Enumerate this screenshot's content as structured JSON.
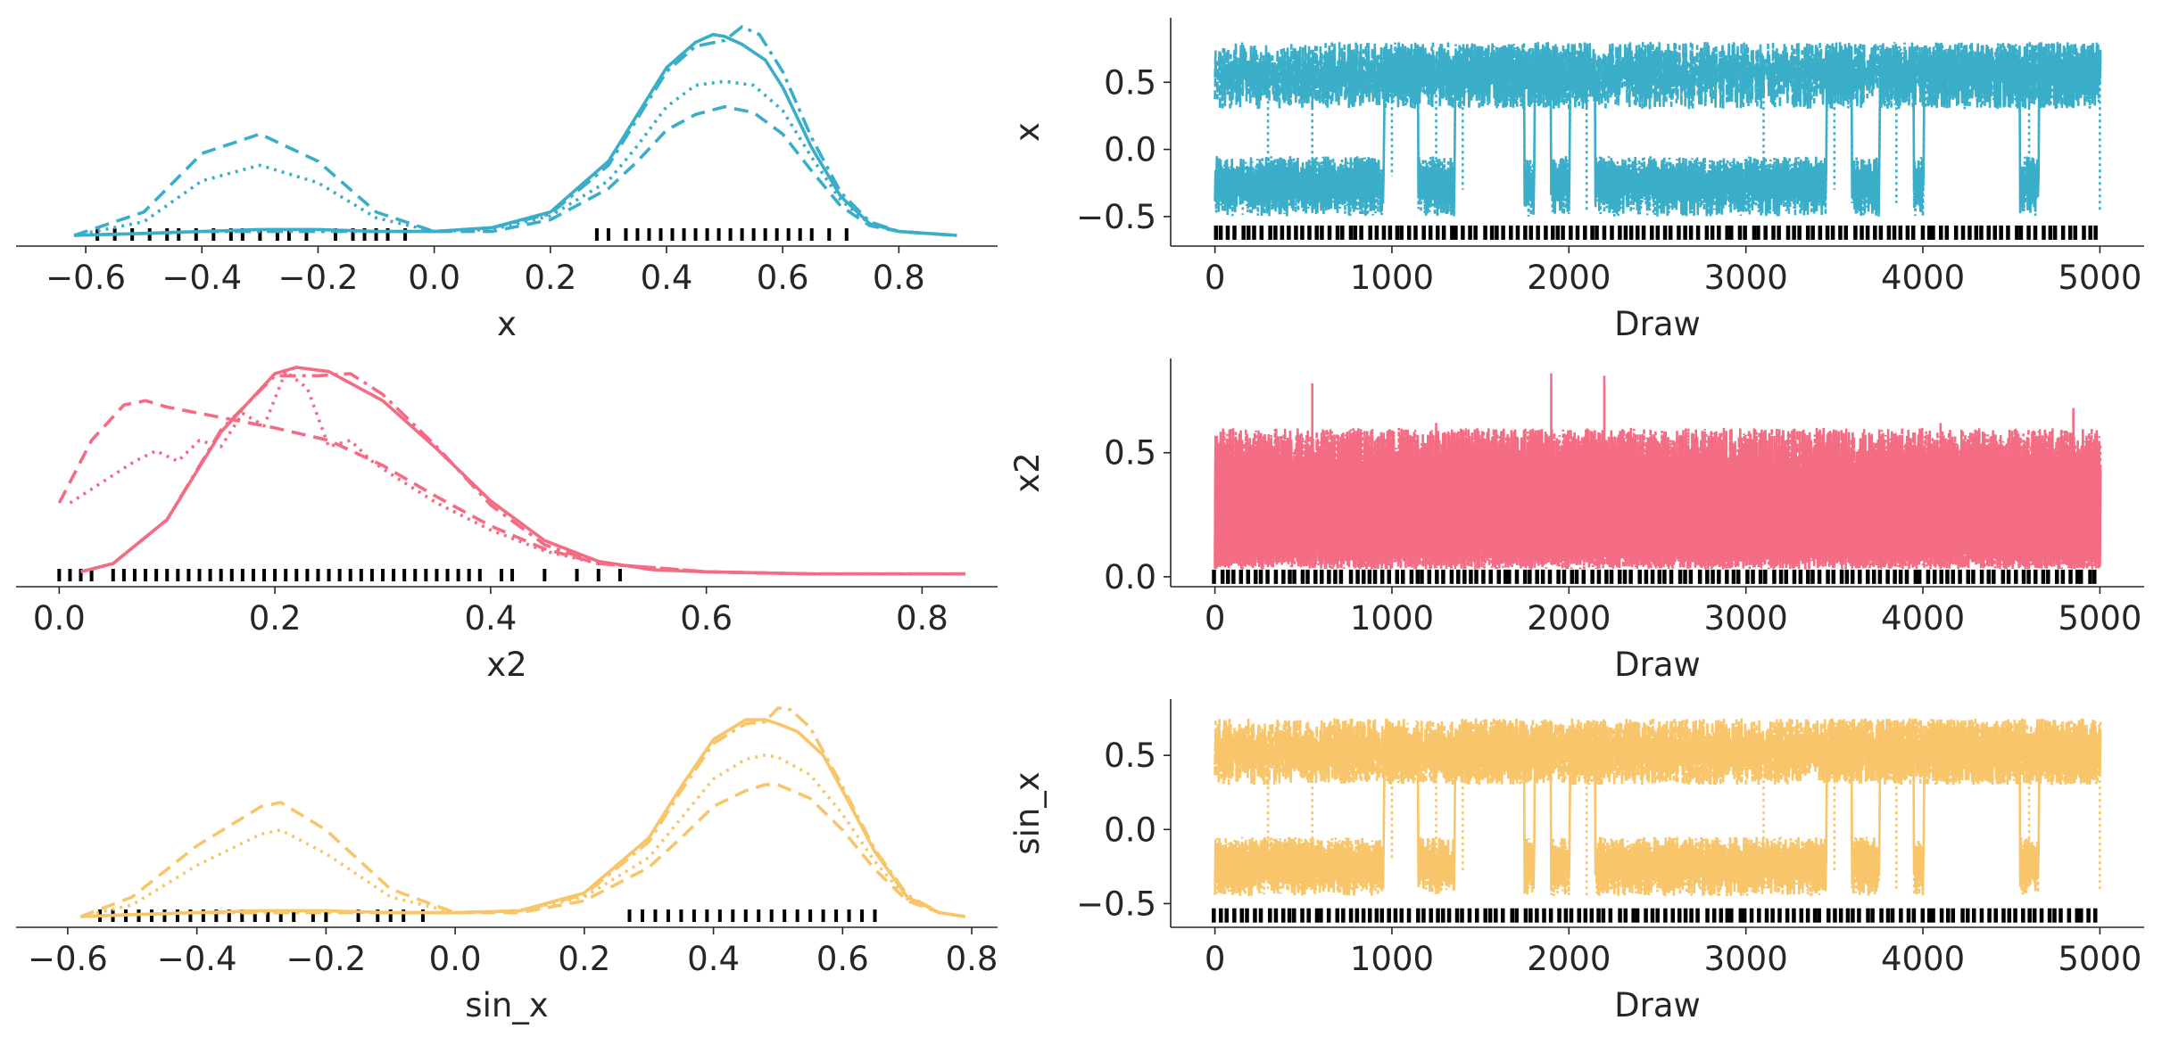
{
  "colors": {
    "x": "#3aaec9",
    "x2": "#f46c83",
    "sin_x": "#f8c56a",
    "rug": "#000000",
    "axis": "#262626"
  },
  "chart_data": [
    {
      "type": "line",
      "panel": "density",
      "variable": "x",
      "xlabel": "x",
      "ylabel": "",
      "xlim": [
        -0.72,
        0.97
      ],
      "xticks": [
        -0.6,
        -0.4,
        -0.2,
        0.0,
        0.2,
        0.4,
        0.6,
        0.8
      ],
      "xtick_labels": [
        "−0.6",
        "−0.4",
        "−0.2",
        "0.0",
        "0.2",
        "0.4",
        "0.6",
        "0.8"
      ],
      "yticks": [],
      "grid": false,
      "series": [
        {
          "linestyle": "solid",
          "x": [
            -0.62,
            -0.5,
            -0.4,
            -0.3,
            -0.2,
            -0.1,
            0.0,
            0.1,
            0.2,
            0.3,
            0.35,
            0.4,
            0.45,
            0.48,
            0.5,
            0.53,
            0.57,
            0.6,
            0.65,
            0.7,
            0.75,
            0.8,
            0.9
          ],
          "y": [
            0,
            0.01,
            0.02,
            0.03,
            0.03,
            0.02,
            0.02,
            0.04,
            0.12,
            0.38,
            0.62,
            0.86,
            0.99,
            1.03,
            1.02,
            0.98,
            0.9,
            0.76,
            0.45,
            0.2,
            0.06,
            0.02,
            0
          ]
        },
        {
          "linestyle": "dashdot",
          "x": [
            -0.62,
            -0.5,
            -0.4,
            -0.3,
            -0.2,
            -0.1,
            0.0,
            0.1,
            0.2,
            0.3,
            0.35,
            0.4,
            0.45,
            0.5,
            0.53,
            0.56,
            0.6,
            0.65,
            0.7,
            0.75,
            0.8,
            0.9
          ],
          "y": [
            0,
            0.01,
            0.02,
            0.02,
            0.02,
            0.02,
            0.02,
            0.04,
            0.11,
            0.36,
            0.6,
            0.84,
            0.97,
            1.0,
            1.07,
            1.03,
            0.84,
            0.5,
            0.22,
            0.07,
            0.02,
            0
          ]
        },
        {
          "linestyle": "dotted",
          "x": [
            -0.62,
            -0.5,
            -0.4,
            -0.3,
            -0.2,
            -0.1,
            0.0,
            0.1,
            0.2,
            0.3,
            0.35,
            0.4,
            0.45,
            0.5,
            0.55,
            0.6,
            0.65,
            0.7,
            0.75,
            0.8,
            0.9
          ],
          "y": [
            0,
            0.07,
            0.28,
            0.36,
            0.27,
            0.09,
            0.02,
            0.03,
            0.1,
            0.28,
            0.46,
            0.66,
            0.77,
            0.79,
            0.77,
            0.64,
            0.4,
            0.18,
            0.06,
            0.02,
            0
          ]
        },
        {
          "linestyle": "dashed",
          "x": [
            -0.62,
            -0.5,
            -0.4,
            -0.3,
            -0.2,
            -0.1,
            0.0,
            0.1,
            0.2,
            0.3,
            0.35,
            0.4,
            0.45,
            0.5,
            0.55,
            0.6,
            0.65,
            0.7,
            0.75,
            0.8,
            0.9
          ],
          "y": [
            0,
            0.12,
            0.42,
            0.52,
            0.38,
            0.12,
            0.02,
            0.02,
            0.08,
            0.24,
            0.38,
            0.54,
            0.62,
            0.66,
            0.63,
            0.52,
            0.33,
            0.15,
            0.05,
            0.02,
            0
          ]
        }
      ],
      "rug": [
        -0.58,
        -0.55,
        -0.52,
        -0.49,
        -0.46,
        -0.44,
        -0.41,
        -0.38,
        -0.35,
        -0.33,
        -0.3,
        -0.27,
        -0.25,
        -0.22,
        -0.17,
        -0.14,
        -0.12,
        -0.1,
        -0.08,
        -0.05,
        0.28,
        0.3,
        0.33,
        0.35,
        0.37,
        0.39,
        0.41,
        0.43,
        0.45,
        0.47,
        0.49,
        0.51,
        0.53,
        0.55,
        0.57,
        0.59,
        0.61,
        0.63,
        0.65,
        0.68,
        0.71
      ]
    },
    {
      "type": "line",
      "panel": "trace",
      "variable": "x",
      "xlabel": "Draw",
      "ylabel": "x",
      "xlim": [
        -250,
        5250
      ],
      "ylim": [
        -0.72,
        0.98
      ],
      "xticks": [
        0,
        1000,
        2000,
        3000,
        4000,
        5000
      ],
      "xtick_labels": [
        "0",
        "1000",
        "2000",
        "3000",
        "4000",
        "5000"
      ],
      "yticks": [
        -0.5,
        0.0,
        0.5
      ],
      "ytick_labels": [
        "−0.5",
        "0.0",
        "0.5"
      ],
      "grid": false,
      "band_upper": {
        "lo": [
          0.3,
          0.6
        ],
        "hi": [
          0.55,
          0.8
        ]
      },
      "band_lower": {
        "lo": [
          -0.5,
          -0.3
        ],
        "hi": [
          -0.2,
          -0.05
        ]
      },
      "lower_segments": [
        [
          0,
          950
        ],
        [
          1150,
          1350
        ],
        [
          1750,
          1800
        ],
        [
          1900,
          2000
        ],
        [
          2150,
          3450
        ],
        [
          3600,
          3750
        ],
        [
          3950,
          4000
        ],
        [
          4550,
          4650
        ]
      ],
      "spikes": [
        [
          300,
          -0.45
        ],
        [
          550,
          -0.35
        ],
        [
          1000,
          -0.2
        ],
        [
          1250,
          -0.4
        ],
        [
          1400,
          -0.3
        ],
        [
          2100,
          -0.45
        ],
        [
          3100,
          -0.35
        ],
        [
          3500,
          -0.3
        ],
        [
          3850,
          -0.4
        ],
        [
          4600,
          -0.3
        ],
        [
          5000,
          -0.45
        ]
      ],
      "rug_y": -0.62
    },
    {
      "type": "line",
      "panel": "density",
      "variable": "x2",
      "xlabel": "x2",
      "ylabel": "",
      "xlim": [
        -0.04,
        0.87
      ],
      "xticks": [
        0.0,
        0.2,
        0.4,
        0.6,
        0.8
      ],
      "xtick_labels": [
        "0.0",
        "0.2",
        "0.4",
        "0.6",
        "0.8"
      ],
      "yticks": [],
      "grid": false,
      "series": [
        {
          "linestyle": "solid",
          "x": [
            0.02,
            0.05,
            0.1,
            0.15,
            0.2,
            0.22,
            0.25,
            0.3,
            0.35,
            0.4,
            0.45,
            0.5,
            0.55,
            0.6,
            0.7,
            0.84
          ],
          "y": [
            0.02,
            0.06,
            0.27,
            0.69,
            0.97,
            1.0,
            0.98,
            0.84,
            0.61,
            0.36,
            0.17,
            0.07,
            0.03,
            0.02,
            0.01,
            0.01
          ]
        },
        {
          "linestyle": "dashdot",
          "x": [
            0.02,
            0.05,
            0.1,
            0.15,
            0.2,
            0.24,
            0.27,
            0.3,
            0.35,
            0.4,
            0.45,
            0.5,
            0.6,
            0.7,
            0.84
          ],
          "y": [
            0.02,
            0.06,
            0.27,
            0.7,
            0.96,
            0.96,
            0.97,
            0.87,
            0.62,
            0.34,
            0.15,
            0.06,
            0.02,
            0.01,
            0.01
          ]
        },
        {
          "linestyle": "dotted",
          "x": [
            0.01,
            0.04,
            0.07,
            0.09,
            0.11,
            0.13,
            0.15,
            0.17,
            0.19,
            0.21,
            0.23,
            0.25,
            0.27,
            0.29,
            0.31,
            0.35,
            0.4,
            0.45,
            0.5,
            0.6,
            0.7,
            0.84
          ],
          "y": [
            0.35,
            0.45,
            0.55,
            0.6,
            0.55,
            0.65,
            0.62,
            0.78,
            0.72,
            0.98,
            0.9,
            0.62,
            0.65,
            0.55,
            0.48,
            0.35,
            0.22,
            0.12,
            0.06,
            0.02,
            0.01,
            0.01
          ]
        },
        {
          "linestyle": "dashed",
          "x": [
            0.0,
            0.03,
            0.06,
            0.08,
            0.1,
            0.15,
            0.2,
            0.25,
            0.3,
            0.35,
            0.4,
            0.45,
            0.5,
            0.6,
            0.7,
            0.84
          ],
          "y": [
            0.35,
            0.65,
            0.82,
            0.84,
            0.81,
            0.76,
            0.71,
            0.65,
            0.53,
            0.38,
            0.24,
            0.13,
            0.06,
            0.02,
            0.01,
            0.01
          ]
        }
      ],
      "rug": [
        0.0,
        0.01,
        0.02,
        0.03,
        0.05,
        0.06,
        0.07,
        0.08,
        0.09,
        0.1,
        0.11,
        0.12,
        0.13,
        0.14,
        0.15,
        0.16,
        0.17,
        0.18,
        0.19,
        0.2,
        0.21,
        0.22,
        0.23,
        0.24,
        0.25,
        0.26,
        0.27,
        0.28,
        0.29,
        0.3,
        0.31,
        0.32,
        0.33,
        0.34,
        0.35,
        0.36,
        0.37,
        0.38,
        0.39,
        0.41,
        0.42,
        0.45,
        0.48,
        0.5,
        0.52
      ]
    },
    {
      "type": "line",
      "panel": "trace",
      "variable": "x2",
      "xlabel": "Draw",
      "ylabel": "x2",
      "xlim": [
        -250,
        5250
      ],
      "ylim": [
        -0.04,
        0.88
      ],
      "xticks": [
        0,
        1000,
        2000,
        3000,
        4000,
        5000
      ],
      "xtick_labels": [
        "0",
        "1000",
        "2000",
        "3000",
        "4000",
        "5000"
      ],
      "yticks": [
        0.0,
        0.5
      ],
      "ytick_labels": [
        "0.0",
        "0.5"
      ],
      "grid": false,
      "band_upper": {
        "lo": [
          0.03,
          0.12
        ],
        "hi": [
          0.4,
          0.6
        ]
      },
      "peaks": [
        [
          550,
          0.78
        ],
        [
          1250,
          0.62
        ],
        [
          1900,
          0.82
        ],
        [
          2200,
          0.81
        ],
        [
          2350,
          0.6
        ],
        [
          3400,
          0.6
        ],
        [
          4100,
          0.62
        ],
        [
          4850,
          0.68
        ]
      ],
      "rug_y": 0.0
    },
    {
      "type": "line",
      "panel": "density",
      "variable": "sin_x",
      "xlabel": "sin_x",
      "ylabel": "",
      "xlim": [
        -0.68,
        0.84
      ],
      "xticks": [
        -0.6,
        -0.4,
        -0.2,
        0.0,
        0.2,
        0.4,
        0.6,
        0.8
      ],
      "xtick_labels": [
        "−0.6",
        "−0.4",
        "−0.2",
        "0.0",
        "0.2",
        "0.4",
        "0.6",
        "0.8"
      ],
      "yticks": [],
      "grid": false,
      "series": [
        {
          "linestyle": "solid",
          "x": [
            -0.58,
            -0.5,
            -0.4,
            -0.3,
            -0.2,
            -0.1,
            0.0,
            0.1,
            0.2,
            0.3,
            0.35,
            0.4,
            0.45,
            0.48,
            0.5,
            0.53,
            0.57,
            0.6,
            0.65,
            0.7,
            0.75,
            0.79
          ],
          "y": [
            0,
            0.01,
            0.02,
            0.03,
            0.03,
            0.02,
            0.02,
            0.03,
            0.12,
            0.4,
            0.66,
            0.9,
            1.0,
            1.0,
            0.98,
            0.94,
            0.82,
            0.64,
            0.33,
            0.1,
            0.02,
            0
          ]
        },
        {
          "linestyle": "dashdot",
          "x": [
            -0.58,
            -0.5,
            -0.4,
            -0.3,
            -0.2,
            -0.1,
            0.0,
            0.1,
            0.2,
            0.3,
            0.35,
            0.4,
            0.45,
            0.48,
            0.5,
            0.52,
            0.55,
            0.6,
            0.65,
            0.7,
            0.75,
            0.79
          ],
          "y": [
            0,
            0.01,
            0.02,
            0.02,
            0.02,
            0.02,
            0.02,
            0.03,
            0.11,
            0.38,
            0.64,
            0.88,
            0.98,
            0.99,
            1.06,
            1.05,
            0.96,
            0.66,
            0.34,
            0.11,
            0.02,
            0
          ]
        },
        {
          "linestyle": "dotted",
          "x": [
            -0.58,
            -0.5,
            -0.4,
            -0.3,
            -0.27,
            -0.2,
            -0.1,
            0.0,
            0.1,
            0.2,
            0.3,
            0.35,
            0.4,
            0.45,
            0.48,
            0.5,
            0.55,
            0.6,
            0.65,
            0.7,
            0.75,
            0.79
          ],
          "y": [
            0,
            0.06,
            0.26,
            0.42,
            0.44,
            0.32,
            0.1,
            0.02,
            0.03,
            0.1,
            0.3,
            0.5,
            0.7,
            0.8,
            0.82,
            0.81,
            0.72,
            0.52,
            0.28,
            0.09,
            0.02,
            0
          ]
        },
        {
          "linestyle": "dashed",
          "x": [
            -0.58,
            -0.5,
            -0.4,
            -0.3,
            -0.27,
            -0.2,
            -0.1,
            0.0,
            0.1,
            0.2,
            0.3,
            0.35,
            0.4,
            0.45,
            0.48,
            0.5,
            0.55,
            0.6,
            0.65,
            0.7,
            0.75,
            0.79
          ],
          "y": [
            0,
            0.1,
            0.36,
            0.56,
            0.58,
            0.44,
            0.14,
            0.02,
            0.02,
            0.08,
            0.25,
            0.4,
            0.56,
            0.64,
            0.67,
            0.67,
            0.6,
            0.44,
            0.24,
            0.08,
            0.02,
            0
          ]
        }
      ],
      "rug": [
        -0.55,
        -0.53,
        -0.51,
        -0.49,
        -0.47,
        -0.45,
        -0.43,
        -0.41,
        -0.39,
        -0.37,
        -0.35,
        -0.33,
        -0.31,
        -0.29,
        -0.27,
        -0.25,
        -0.22,
        -0.2,
        -0.15,
        -0.12,
        -0.1,
        -0.08,
        -0.05,
        0.27,
        0.29,
        0.31,
        0.33,
        0.35,
        0.37,
        0.39,
        0.41,
        0.43,
        0.45,
        0.47,
        0.49,
        0.51,
        0.53,
        0.55,
        0.57,
        0.59,
        0.61,
        0.63,
        0.65
      ]
    },
    {
      "type": "line",
      "panel": "trace",
      "variable": "sin_x",
      "xlabel": "Draw",
      "ylabel": "sin_x",
      "xlim": [
        -250,
        5250
      ],
      "ylim": [
        -0.66,
        0.88
      ],
      "xticks": [
        0,
        1000,
        2000,
        3000,
        4000,
        5000
      ],
      "xtick_labels": [
        "0",
        "1000",
        "2000",
        "3000",
        "4000",
        "5000"
      ],
      "yticks": [
        -0.5,
        0.0,
        0.5
      ],
      "ytick_labels": [
        "−0.5",
        "0.0",
        "0.5"
      ],
      "grid": false,
      "band_upper": {
        "lo": [
          0.3,
          0.5
        ],
        "hi": [
          0.55,
          0.75
        ]
      },
      "band_lower": {
        "lo": [
          -0.45,
          -0.3
        ],
        "hi": [
          -0.18,
          -0.05
        ]
      },
      "lower_segments": [
        [
          0,
          950
        ],
        [
          1150,
          1350
        ],
        [
          1750,
          1800
        ],
        [
          1900,
          2000
        ],
        [
          2150,
          3450
        ],
        [
          3600,
          3750
        ],
        [
          3950,
          4000
        ],
        [
          4550,
          4650
        ]
      ],
      "spikes": [
        [
          300,
          -0.42
        ],
        [
          550,
          -0.35
        ],
        [
          1000,
          -0.2
        ],
        [
          1250,
          -0.4
        ],
        [
          1400,
          -0.3
        ],
        [
          2100,
          -0.45
        ],
        [
          3100,
          -0.35
        ],
        [
          3500,
          -0.3
        ],
        [
          3850,
          -0.4
        ],
        [
          4600,
          -0.3
        ],
        [
          5000,
          -0.42
        ]
      ],
      "rug_y": -0.58
    }
  ]
}
